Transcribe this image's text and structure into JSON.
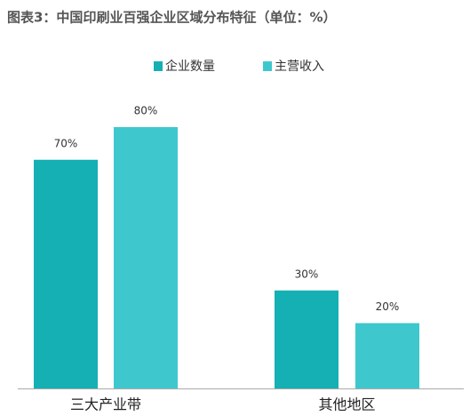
{
  "chart_data": {
    "type": "bar",
    "title": "图表3：中国印刷业百强企业区域分布特征（单位：%）",
    "categories": [
      "三大产业带",
      "其他地区"
    ],
    "series": [
      {
        "name": "企业数量",
        "color": "#14b0b4",
        "values": [
          70,
          30
        ],
        "value_labels": [
          "70%",
          "30%"
        ]
      },
      {
        "name": "主营收入",
        "color": "#3ec8cd",
        "values": [
          80,
          20
        ],
        "value_labels": [
          "80%",
          "20%"
        ]
      }
    ]
  }
}
